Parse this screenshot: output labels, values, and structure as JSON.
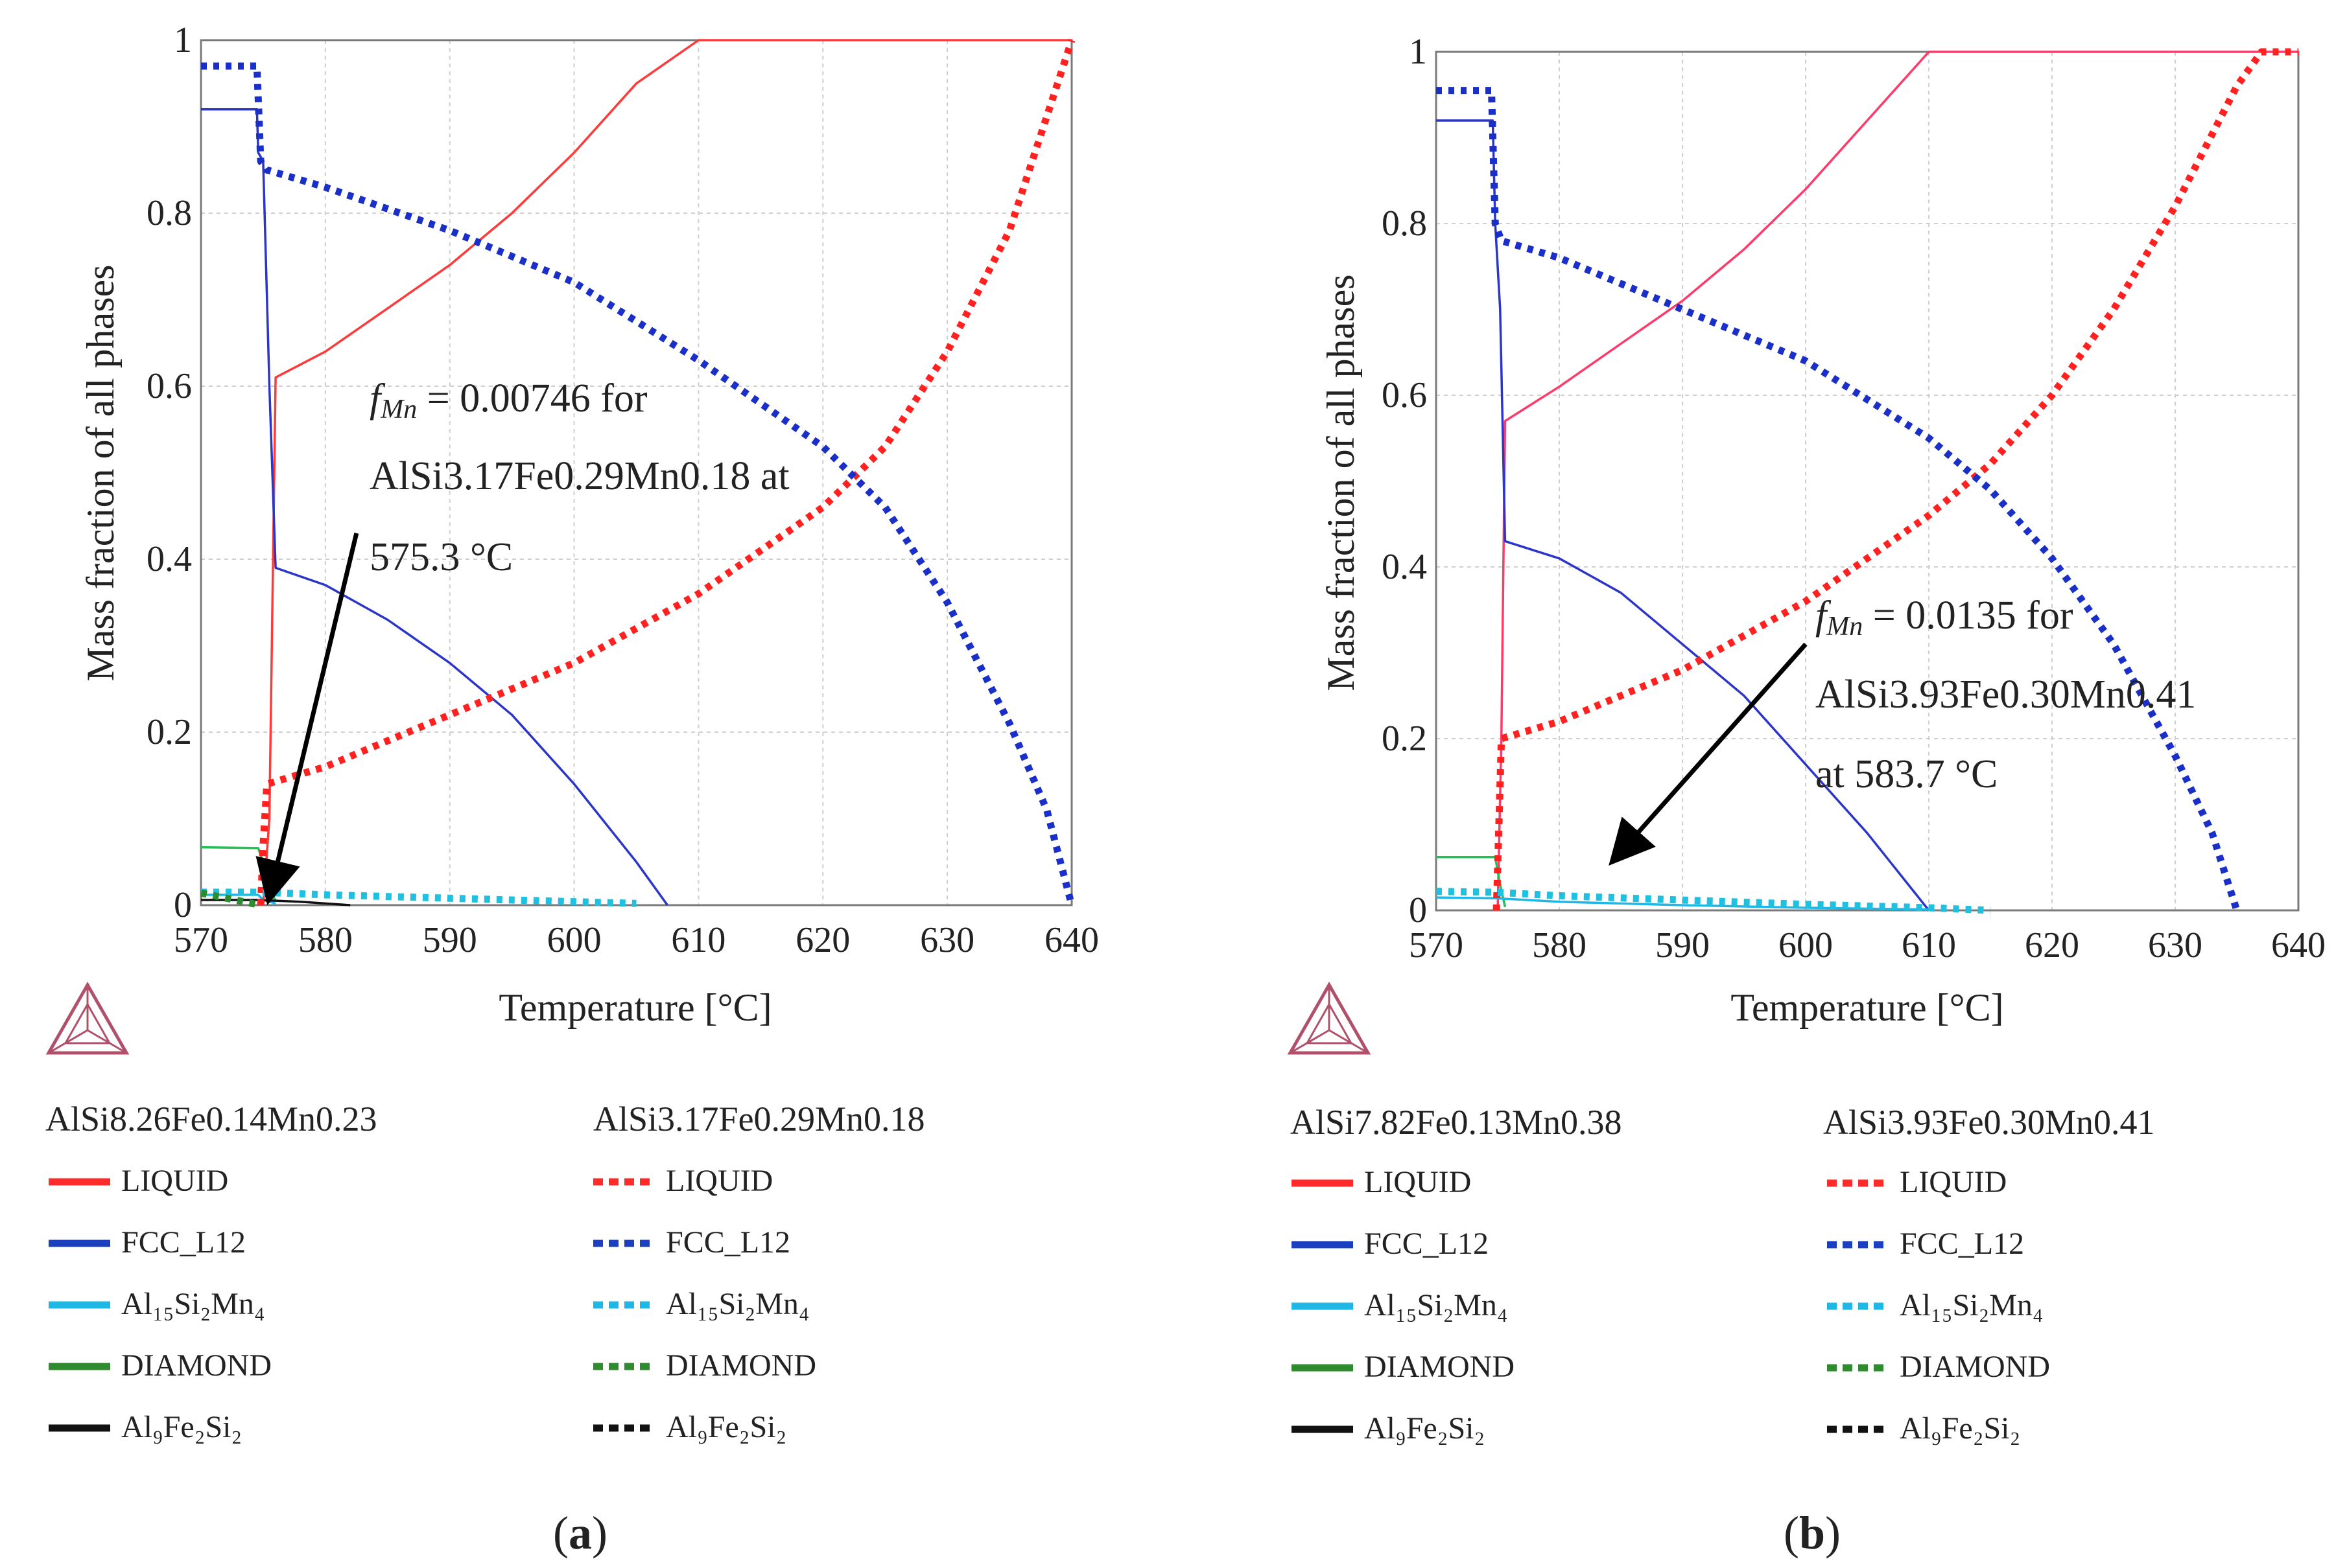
{
  "chart_data": [
    {
      "panel": "(a)",
      "panel_letter": "a",
      "type": "line",
      "xlabel": "Temperature [°C]",
      "ylabel": "Mass fraction of all phases",
      "xlim": [
        570,
        640
      ],
      "ylim": [
        0,
        1
      ],
      "xticks": [
        "570",
        "580",
        "590",
        "600",
        "610",
        "620",
        "630",
        "640"
      ],
      "yticks": [
        "0",
        "0.2",
        "0.4",
        "0.6",
        "0.8",
        "1"
      ],
      "annotation": {
        "symbol": "f",
        "subscript": "Mn",
        "line1": " = 0.00746 for",
        "line2": "AlSi3.17Fe0.29Mn0.18 at",
        "line3": "575.3 °C",
        "arrow_from": [
          582.5,
          0.43
        ],
        "arrow_to": [
          575.5,
          0.01
        ]
      },
      "legend": {
        "solid_title": "AlSi8.26Fe0.14Mn0.23",
        "dotted_title": "AlSi3.17Fe0.29Mn0.18",
        "items": [
          {
            "solid_label": "LIQUID",
            "dotted_label": "LIQUID",
            "color": "#ff2b2b"
          },
          {
            "solid_label": "FCC_L12",
            "dotted_label": "FCC_L12",
            "color": "#1a3fbf"
          },
          {
            "solid_label": "Al₁₅Si₂Mn₄",
            "dotted_label": "Al₁₅Si₂Mn₄",
            "color": "#1fb8e6"
          },
          {
            "solid_label": "DIAMOND",
            "dotted_label": "DIAMOND",
            "color": "#2e8b2e"
          },
          {
            "solid_label": "Al₉Fe₂Si₂",
            "dotted_label": "Al₉Fe₂Si₂",
            "color": "#111111"
          }
        ]
      },
      "series": [
        {
          "name": "LIQUID (AlSi8.26Fe0.14Mn0.23)",
          "style": "solid",
          "color": "#ff3a3a",
          "x": [
            575,
            575.5,
            576,
            580,
            585,
            590,
            595,
            600,
            605,
            610,
            620,
            630,
            640
          ],
          "y": [
            0,
            0.1,
            0.61,
            0.64,
            0.69,
            0.74,
            0.8,
            0.87,
            0.95,
            1.0,
            1.0,
            1.0,
            1.0
          ]
        },
        {
          "name": "FCC_L12 (AlSi8.26Fe0.14Mn0.23)",
          "style": "solid",
          "color": "#2b35c8",
          "x": [
            570,
            574.5,
            574.6,
            575,
            575.5,
            576,
            580,
            585,
            590,
            595,
            600,
            605,
            607.5
          ],
          "y": [
            0.92,
            0.92,
            0.87,
            0.86,
            0.6,
            0.39,
            0.37,
            0.33,
            0.28,
            0.22,
            0.14,
            0.05,
            0
          ]
        },
        {
          "name": "DIAMOND (AlSi8.26Fe0.14Mn0.23)",
          "style": "solid",
          "color": "#22c055",
          "x": [
            570,
            574.6,
            575,
            575.5,
            576
          ],
          "y": [
            0.067,
            0.066,
            0.05,
            0.02,
            0.005
          ]
        },
        {
          "name": "Al₁₅Si₂Mn₄ (AlSi8.26Fe0.14Mn0.23)",
          "style": "solid",
          "color": "#1fb8e6",
          "x": [
            570,
            574.6,
            575,
            576
          ],
          "y": [
            0.012,
            0.012,
            0.006,
            0.002
          ]
        },
        {
          "name": "Al₉Fe₂Si₂ (AlSi8.26Fe0.14Mn0.23)",
          "style": "solid",
          "color": "#111111",
          "x": [
            570,
            574.6,
            578,
            582
          ],
          "y": [
            0.006,
            0.006,
            0.004,
            0.0
          ]
        },
        {
          "name": "LIQUID (AlSi3.17Fe0.29Mn0.18)",
          "style": "dotted",
          "color": "#ff2020",
          "x": [
            574.8,
            575,
            575.3,
            580,
            590,
            600,
            610,
            620,
            625,
            630,
            635,
            640
          ],
          "y": [
            0,
            0.07,
            0.14,
            0.16,
            0.22,
            0.28,
            0.36,
            0.46,
            0.53,
            0.64,
            0.78,
            1.0
          ]
        },
        {
          "name": "FCC_L12 (AlSi3.17Fe0.29Mn0.18)",
          "style": "dotted",
          "color": "#1a2fc8",
          "x": [
            570,
            574.5,
            574.8,
            575.3,
            580,
            590,
            600,
            610,
            620,
            625,
            630,
            635,
            638,
            640
          ],
          "y": [
            0.97,
            0.97,
            0.86,
            0.85,
            0.83,
            0.78,
            0.72,
            0.63,
            0.53,
            0.46,
            0.35,
            0.21,
            0.11,
            0
          ]
        },
        {
          "name": "Al₁₅Si₂Mn₄ (AlSi3.17Fe0.29Mn0.18)",
          "style": "dotted",
          "color": "#1fc0e0",
          "x": [
            570,
            574.8,
            580,
            590,
            600,
            605
          ],
          "y": [
            0.015,
            0.015,
            0.012,
            0.008,
            0.004,
            0.002
          ]
        },
        {
          "name": "DIAMOND (AlSi3.17Fe0.29Mn0.18)",
          "style": "dotted",
          "color": "#2e8b2e",
          "x": [
            570,
            574.8
          ],
          "y": [
            0.014,
            0.0
          ]
        }
      ]
    },
    {
      "panel": "(b)",
      "panel_letter": "b",
      "type": "line",
      "xlabel": "Temperature [°C]",
      "ylabel": "Mass fraction of all phases",
      "xlim": [
        570,
        640
      ],
      "ylim": [
        0,
        1
      ],
      "xticks": [
        "570",
        "580",
        "590",
        "600",
        "610",
        "620",
        "630",
        "640"
      ],
      "yticks": [
        "0",
        "0.2",
        "0.4",
        "0.6",
        "0.8",
        "1"
      ],
      "annotation": {
        "symbol": "f",
        "subscript": "Mn",
        "line1": " = 0.0135 for",
        "line2": "AlSi3.93Fe0.30Mn0.41",
        "line3": "at 583.7 °C",
        "arrow_from": [
          600,
          0.31
        ],
        "arrow_to": [
          584.5,
          0.06
        ]
      },
      "legend": {
        "solid_title": "AlSi7.82Fe0.13Mn0.38",
        "dotted_title": "AlSi3.93Fe0.30Mn0.41",
        "items": [
          {
            "solid_label": "LIQUID",
            "dotted_label": "LIQUID",
            "color": "#ff2b2b"
          },
          {
            "solid_label": "FCC_L12",
            "dotted_label": "FCC_L12",
            "color": "#1a3fbf"
          },
          {
            "solid_label": "Al₁₅Si₂Mn₄",
            "dotted_label": "Al₁₅Si₂Mn₄",
            "color": "#1fb8e6"
          },
          {
            "solid_label": "DIAMOND",
            "dotted_label": "DIAMOND",
            "color": "#2e8b2e"
          },
          {
            "solid_label": "Al₉Fe₂Si₂",
            "dotted_label": "Al₉Fe₂Si₂",
            "color": "#111111"
          }
        ]
      },
      "series": [
        {
          "name": "LIQUID (AlSi7.82Fe0.13Mn0.38)",
          "style": "solid",
          "color": "#ff3a6a",
          "x": [
            575,
            575.3,
            575.6,
            580,
            585,
            590,
            595,
            600,
            605,
            610,
            620,
            630,
            640
          ],
          "y": [
            0,
            0.2,
            0.57,
            0.61,
            0.66,
            0.71,
            0.77,
            0.84,
            0.92,
            1.0,
            1.0,
            1.0,
            1.0
          ]
        },
        {
          "name": "FCC_L12 (AlSi7.82Fe0.13Mn0.38)",
          "style": "solid",
          "color": "#2b35c8",
          "x": [
            570,
            574.6,
            574.8,
            575.2,
            575.6,
            580,
            585,
            590,
            595,
            600,
            605,
            610
          ],
          "y": [
            0.92,
            0.92,
            0.8,
            0.7,
            0.43,
            0.41,
            0.37,
            0.31,
            0.25,
            0.17,
            0.09,
            0
          ]
        },
        {
          "name": "DIAMOND (AlSi7.82Fe0.13Mn0.38)",
          "style": "solid",
          "color": "#22c055",
          "x": [
            570,
            574.8,
            575.2,
            575.6
          ],
          "y": [
            0.062,
            0.062,
            0.03,
            0.004
          ]
        },
        {
          "name": "Al₁₅Si₂Mn₄ (AlSi7.82Fe0.13Mn0.38)",
          "style": "solid",
          "color": "#1fb8e6",
          "x": [
            570,
            575,
            580,
            590,
            600,
            610
          ],
          "y": [
            0.015,
            0.014,
            0.01,
            0.006,
            0.003,
            0.001
          ]
        },
        {
          "name": "LIQUID (AlSi3.93Fe0.30Mn0.41)",
          "style": "dotted",
          "color": "#ff2020",
          "x": [
            574.9,
            575.1,
            575.3,
            580,
            590,
            600,
            610,
            615,
            620,
            625,
            630,
            635,
            637,
            640
          ],
          "y": [
            0,
            0.1,
            0.2,
            0.22,
            0.28,
            0.36,
            0.46,
            0.52,
            0.6,
            0.7,
            0.82,
            0.96,
            1.0,
            1.0
          ]
        },
        {
          "name": "FCC_L12 (AlSi3.93Fe0.30Mn0.41)",
          "style": "dotted",
          "color": "#1a2fc8",
          "x": [
            570,
            574.5,
            574.8,
            575.3,
            580,
            590,
            600,
            610,
            615,
            620,
            625,
            630,
            633,
            635
          ],
          "y": [
            0.955,
            0.955,
            0.8,
            0.78,
            0.76,
            0.7,
            0.64,
            0.55,
            0.49,
            0.41,
            0.31,
            0.18,
            0.09,
            0
          ]
        },
        {
          "name": "Al₁₅Si₂Mn₄ (AlSi3.93Fe0.30Mn0.41)",
          "style": "dotted",
          "color": "#1fc0e0",
          "x": [
            570,
            575,
            580,
            590,
            600,
            610,
            615
          ],
          "y": [
            0.022,
            0.021,
            0.017,
            0.012,
            0.007,
            0.003,
            0.0
          ]
        }
      ]
    }
  ]
}
